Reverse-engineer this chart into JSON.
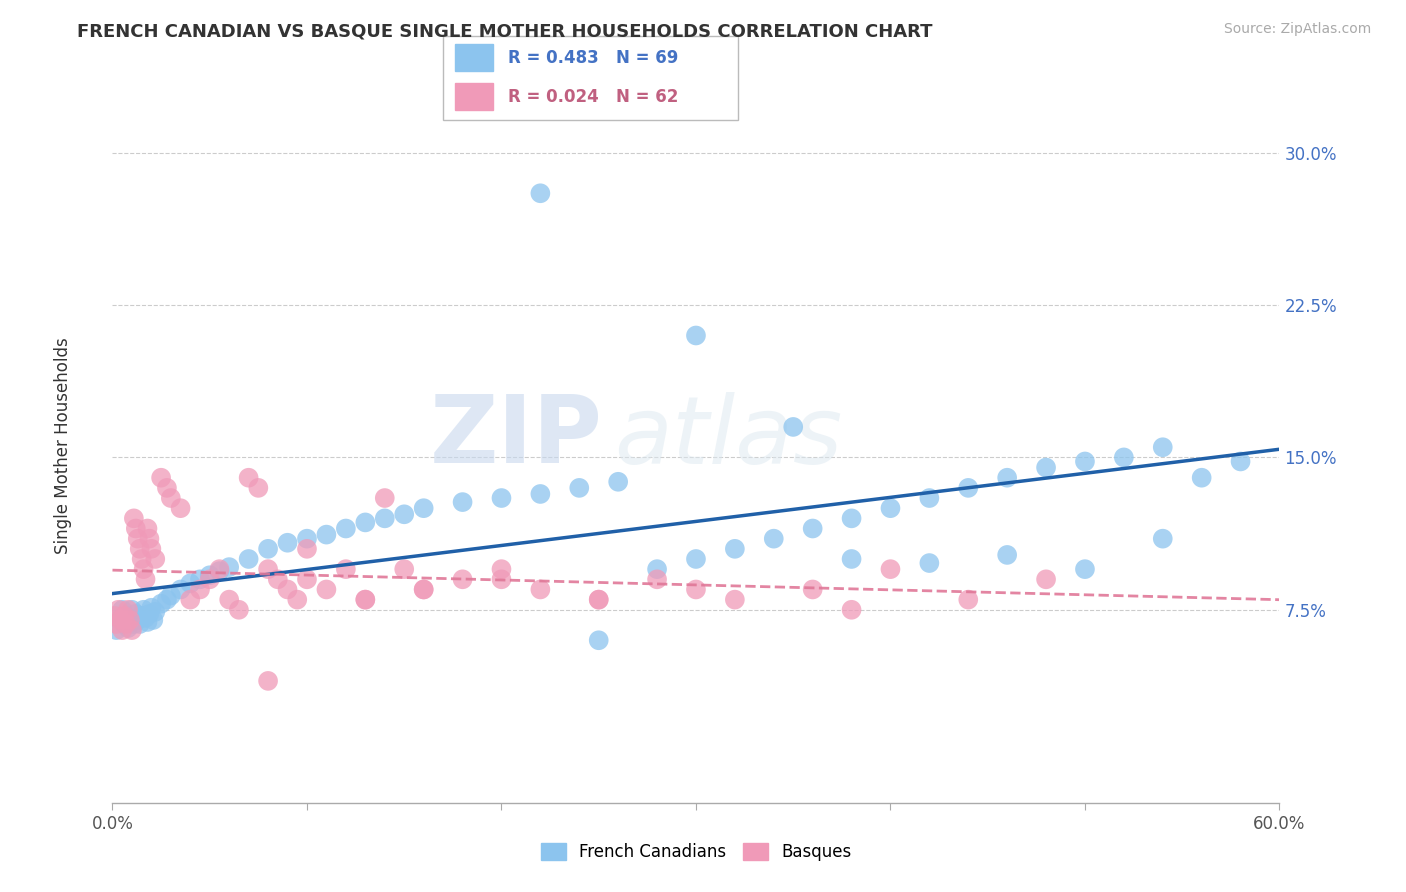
{
  "title": "FRENCH CANADIAN VS BASQUE SINGLE MOTHER HOUSEHOLDS CORRELATION CHART",
  "source": "Source: ZipAtlas.com",
  "ylabel": "Single Mother Households",
  "xlim": [
    0.0,
    0.6
  ],
  "ylim": [
    -0.02,
    0.34
  ],
  "yticks": [
    0.075,
    0.15,
    0.225,
    0.3
  ],
  "ytick_labels": [
    "7.5%",
    "15.0%",
    "22.5%",
    "30.0%"
  ],
  "xticks": [
    0.0,
    0.1,
    0.2,
    0.3,
    0.4,
    0.5,
    0.6
  ],
  "xtick_labels_visible": [
    "0.0%",
    "",
    "",
    "",
    "",
    "",
    "60.0%"
  ],
  "blue_color": "#8CC4EE",
  "pink_color": "#F09AB8",
  "blue_line_color": "#2060A8",
  "pink_line_color": "#E07898",
  "legend_blue_R": "R = 0.483",
  "legend_blue_N": "N = 69",
  "legend_pink_R": "R = 0.024",
  "legend_pink_N": "N = 62",
  "watermark_zip": "ZIP",
  "watermark_atlas": "atlas",
  "blue_scatter_x": [
    0.002,
    0.004,
    0.005,
    0.006,
    0.007,
    0.008,
    0.009,
    0.01,
    0.011,
    0.012,
    0.013,
    0.014,
    0.015,
    0.016,
    0.017,
    0.018,
    0.019,
    0.02,
    0.021,
    0.022,
    0.025,
    0.028,
    0.03,
    0.035,
    0.04,
    0.045,
    0.05,
    0.055,
    0.06,
    0.07,
    0.08,
    0.09,
    0.1,
    0.11,
    0.12,
    0.13,
    0.14,
    0.15,
    0.16,
    0.18,
    0.2,
    0.22,
    0.24,
    0.26,
    0.28,
    0.3,
    0.32,
    0.34,
    0.36,
    0.38,
    0.4,
    0.42,
    0.44,
    0.46,
    0.48,
    0.5,
    0.52,
    0.54,
    0.38,
    0.42,
    0.46,
    0.5,
    0.54,
    0.56,
    0.58,
    0.3,
    0.35,
    0.25,
    0.22
  ],
  "blue_scatter_y": [
    0.065,
    0.07,
    0.075,
    0.068,
    0.072,
    0.066,
    0.07,
    0.075,
    0.068,
    0.073,
    0.07,
    0.068,
    0.072,
    0.075,
    0.071,
    0.069,
    0.073,
    0.076,
    0.07,
    0.074,
    0.078,
    0.08,
    0.082,
    0.085,
    0.088,
    0.09,
    0.092,
    0.094,
    0.096,
    0.1,
    0.105,
    0.108,
    0.11,
    0.112,
    0.115,
    0.118,
    0.12,
    0.122,
    0.125,
    0.128,
    0.13,
    0.132,
    0.135,
    0.138,
    0.095,
    0.1,
    0.105,
    0.11,
    0.115,
    0.12,
    0.125,
    0.13,
    0.135,
    0.14,
    0.145,
    0.148,
    0.15,
    0.155,
    0.1,
    0.098,
    0.102,
    0.095,
    0.11,
    0.14,
    0.148,
    0.21,
    0.165,
    0.06,
    0.28
  ],
  "pink_scatter_x": [
    0.001,
    0.002,
    0.003,
    0.004,
    0.005,
    0.006,
    0.007,
    0.008,
    0.009,
    0.01,
    0.011,
    0.012,
    0.013,
    0.014,
    0.015,
    0.016,
    0.017,
    0.018,
    0.019,
    0.02,
    0.022,
    0.025,
    0.028,
    0.03,
    0.035,
    0.04,
    0.045,
    0.05,
    0.055,
    0.06,
    0.065,
    0.07,
    0.075,
    0.08,
    0.085,
    0.09,
    0.095,
    0.1,
    0.11,
    0.12,
    0.13,
    0.14,
    0.15,
    0.16,
    0.18,
    0.2,
    0.22,
    0.25,
    0.28,
    0.32,
    0.36,
    0.4,
    0.44,
    0.48,
    0.38,
    0.3,
    0.25,
    0.2,
    0.16,
    0.13,
    0.1,
    0.08
  ],
  "pink_scatter_y": [
    0.072,
    0.068,
    0.075,
    0.07,
    0.065,
    0.072,
    0.068,
    0.075,
    0.07,
    0.065,
    0.12,
    0.115,
    0.11,
    0.105,
    0.1,
    0.095,
    0.09,
    0.115,
    0.11,
    0.105,
    0.1,
    0.14,
    0.135,
    0.13,
    0.125,
    0.08,
    0.085,
    0.09,
    0.095,
    0.08,
    0.075,
    0.14,
    0.135,
    0.095,
    0.09,
    0.085,
    0.08,
    0.09,
    0.085,
    0.095,
    0.08,
    0.13,
    0.095,
    0.085,
    0.09,
    0.095,
    0.085,
    0.08,
    0.09,
    0.08,
    0.085,
    0.095,
    0.08,
    0.09,
    0.075,
    0.085,
    0.08,
    0.09,
    0.085,
    0.08,
    0.105,
    0.04
  ]
}
